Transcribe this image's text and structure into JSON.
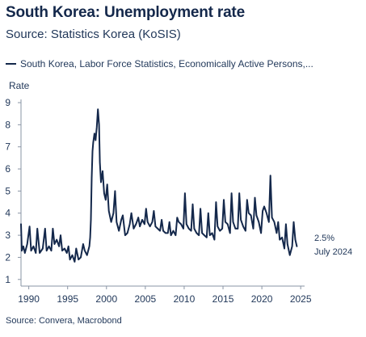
{
  "title": "South Korea: Unemployment rate",
  "subtitle": "Source: Statistics Korea (KoSIS)",
  "legend": "South Korea, Labor Force Statistics, Economically Active Persons,...",
  "footer": "Source: Convera, Macrobond",
  "colors": {
    "line": "#14284b",
    "axis": "#8a95a5",
    "text": "#1f3658"
  },
  "chart_data": {
    "type": "line",
    "ylabel": "Rate",
    "ylim": [
      1,
      9
    ],
    "xlim": [
      1989,
      2025
    ],
    "yticks": [
      1,
      2,
      3,
      4,
      5,
      6,
      7,
      8,
      9
    ],
    "xticks": [
      1990,
      1995,
      2000,
      2005,
      2010,
      2015,
      2020,
      2025
    ],
    "grid": false,
    "legend_position": "top",
    "series": [
      {
        "name": "South Korea, Labor Force Statistics, Economically Active Persons,...",
        "x": [
          1989.0,
          1989.1,
          1989.3,
          1989.5,
          1989.8,
          1990.1,
          1990.3,
          1990.6,
          1990.9,
          1991.1,
          1991.4,
          1991.8,
          1992.1,
          1992.3,
          1992.6,
          1992.9,
          1993.1,
          1993.3,
          1993.6,
          1993.9,
          1994.1,
          1994.3,
          1994.6,
          1994.9,
          1995.1,
          1995.3,
          1995.6,
          1995.9,
          1996.1,
          1996.4,
          1996.7,
          1997.0,
          1997.2,
          1997.5,
          1997.8,
          1997.9,
          1998.0,
          1998.1,
          1998.2,
          1998.3,
          1998.45,
          1998.6,
          1998.75,
          1998.9,
          1999.05,
          1999.15,
          1999.3,
          1999.5,
          1999.7,
          1999.9,
          2000.1,
          2000.3,
          2000.6,
          2000.9,
          2001.1,
          2001.3,
          2001.6,
          2001.9,
          2002.1,
          2002.4,
          2002.7,
          2003.0,
          2003.2,
          2003.5,
          2003.8,
          2004.1,
          2004.3,
          2004.6,
          2004.9,
          2005.1,
          2005.3,
          2005.6,
          2005.9,
          2006.1,
          2006.3,
          2006.6,
          2006.9,
          2007.1,
          2007.3,
          2007.6,
          2007.9,
          2008.1,
          2008.3,
          2008.6,
          2008.9,
          2009.1,
          2009.3,
          2009.6,
          2009.9,
          2010.1,
          2010.3,
          2010.6,
          2010.9,
          2011.1,
          2011.3,
          2011.6,
          2011.9,
          2012.1,
          2012.3,
          2012.6,
          2012.9,
          2013.1,
          2013.3,
          2013.6,
          2013.9,
          2014.1,
          2014.3,
          2014.6,
          2014.9,
          2015.1,
          2015.3,
          2015.6,
          2015.9,
          2016.1,
          2016.3,
          2016.6,
          2016.9,
          2017.1,
          2017.3,
          2017.6,
          2017.9,
          2018.1,
          2018.3,
          2018.6,
          2018.9,
          2019.1,
          2019.3,
          2019.6,
          2019.9,
          2020.1,
          2020.3,
          2020.6,
          2020.9,
          2021.1,
          2021.3,
          2021.6,
          2021.9,
          2022.1,
          2022.3,
          2022.6,
          2022.9,
          2023.1,
          2023.3,
          2023.6,
          2023.9,
          2024.1,
          2024.3,
          2024.5
        ],
        "values": [
          3.5,
          2.3,
          2.5,
          2.2,
          2.6,
          3.4,
          2.3,
          2.5,
          2.2,
          3.3,
          2.2,
          2.4,
          3.3,
          2.3,
          2.5,
          2.3,
          3.3,
          2.6,
          2.8,
          2.5,
          3.0,
          2.3,
          2.4,
          2.2,
          2.5,
          1.9,
          2.1,
          1.8,
          2.4,
          1.9,
          2.0,
          2.6,
          2.3,
          2.1,
          2.5,
          2.9,
          3.7,
          5.6,
          6.8,
          7.2,
          7.6,
          7.3,
          7.9,
          8.7,
          8.0,
          6.3,
          5.4,
          5.9,
          4.9,
          4.6,
          5.3,
          4.1,
          3.6,
          4.0,
          5.0,
          3.6,
          3.2,
          3.7,
          3.9,
          3.0,
          3.1,
          3.5,
          4.0,
          3.3,
          3.5,
          3.8,
          3.4,
          3.7,
          3.5,
          4.2,
          3.6,
          3.4,
          3.6,
          4.1,
          3.4,
          3.3,
          3.2,
          3.7,
          3.2,
          3.1,
          3.1,
          3.6,
          3.0,
          3.2,
          3.0,
          3.8,
          3.6,
          3.5,
          3.3,
          4.9,
          3.5,
          3.3,
          3.2,
          4.4,
          3.3,
          3.1,
          3.0,
          4.2,
          3.1,
          3.0,
          2.9,
          4.0,
          3.0,
          3.1,
          2.8,
          4.5,
          3.4,
          3.2,
          3.3,
          4.6,
          3.6,
          3.5,
          3.1,
          4.9,
          3.6,
          3.3,
          3.3,
          4.9,
          3.7,
          3.4,
          3.2,
          4.6,
          4.0,
          3.9,
          3.3,
          4.7,
          3.9,
          3.6,
          3.1,
          4.1,
          4.3,
          4.0,
          3.6,
          5.7,
          3.8,
          3.6,
          3.1,
          3.6,
          2.8,
          2.9,
          2.4,
          3.5,
          2.6,
          2.1,
          2.5,
          3.6,
          2.8,
          2.5
        ],
        "end_label": {
          "value": "2.5%",
          "date": "July 2024"
        }
      }
    ]
  }
}
